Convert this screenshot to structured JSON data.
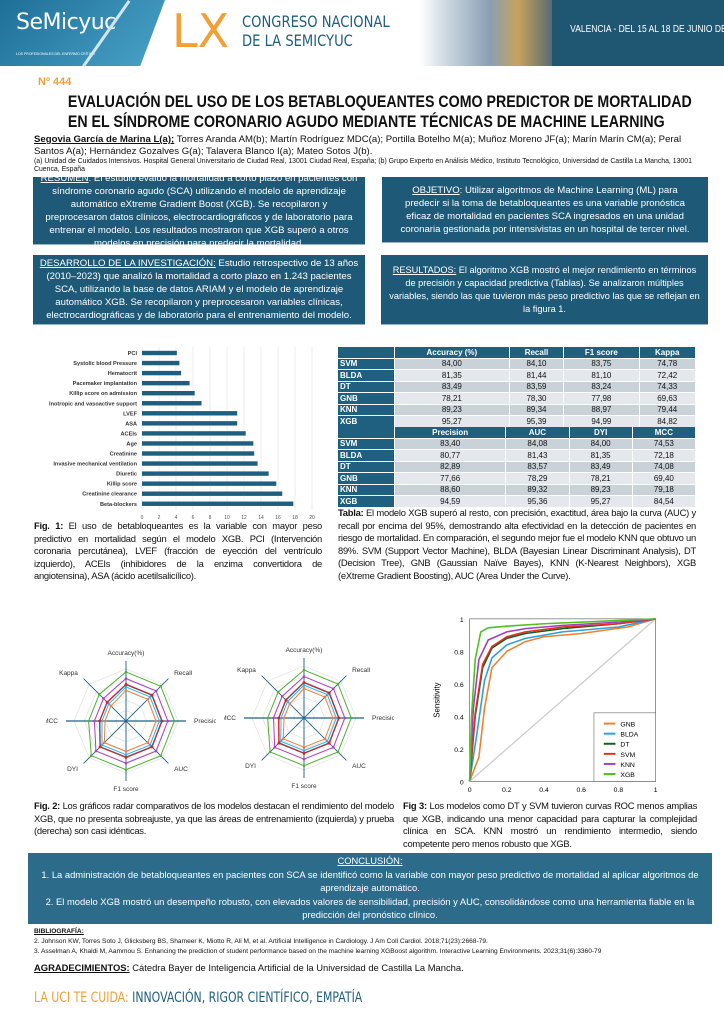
{
  "header": {
    "logo": "SeMicyuc",
    "logo_tagline": "LOS PROFESIONALES DEL ENFERMO CRÍTICO",
    "congress_number": "LX",
    "congress_line1": "CONGRESO NACIONAL",
    "congress_line2": "DE LA SEMICYUC",
    "date": "VALENCIA - DEL 15 AL 18 DE JUNIO DE 2025"
  },
  "poster_number": "Nº 444",
  "title_line1": "EVALUACIÓN DEL USO DE LOS BETABLOQUEANTES COMO PREDICTOR DE MORTALIDAD",
  "title_line2": "EN EL SÍNDROME CORONARIO AGUDO MEDIANTE TÉCNICAS DE MACHINE LEARNING",
  "first_author": "Segovia García de Marina L(a);",
  "other_authors": " Torres Aranda AM(b); Martín Rodríguez MDC(a); Portilla Botelho M(a); Muñoz Moreno JF(a); Marín Marín CM(a); Peral Santos A(a); Hernández Gozalves G(a); Talavera Blanco I(a); Mateo Sotos J(b).",
  "affiliations": "(a) Unidad de Cuidados Intensivos. Hospital General Universitario de Ciudad Real, 13001 Ciudad Real, España; (b) Grupo Experto en Análisis Médico, Instituto Tecnológico, Universidad de Castilla La Mancha, 13001 Cuenca, España",
  "resumen": {
    "label": "RESUMEN",
    "text": ": El estudio evaluó la mortalidad a corto plazo en pacientes con síndrome coronario agudo (SCA) utilizando el modelo de aprendizaje automático  eXtreme Gradient Boost (XGB). Se recopilaron y preprocesaron datos clínicos, electrocardiográficos y de laboratorio para entrenar el modelo. Los resultados mostraron que XGB superó a otros modelos en precisión para predecir la mortalidad."
  },
  "objetivo": {
    "label": "OBJETIVO",
    "text": ": Utilizar algoritmos de Machine Learning (ML) para predecir si la toma de betabloqueantes es una variable pronóstica eficaz de mortalidad en pacientes SCA ingresados en una unidad coronaria gestionada por intensivistas en un hospital de tercer nivel."
  },
  "desarrollo": {
    "label": "DESARROLLO DE LA INVESTIGACIÓN:",
    "text": " Estudio retrospectivo de 13 años (2010–2023) que analizó la mortalidad a corto plazo en 1.243 pacientes SCA, utilizando la base de datos ARIAM y el modelo de aprendizaje automático XGB. Se recopilaron y preprocesaron variables clínicas, electrocardiográficas y de laboratorio para el entrenamiento del modelo."
  },
  "resultados": {
    "label": "RESULTADOS:",
    "text": " El algoritmo XGB mostró el mejor rendimiento en términos de precisión y capacidad predictiva (Tablas). Se analizaron múltiples variables, siendo las que tuvieron más peso predictivo las que se reflejan en la figura 1."
  },
  "chart_data": [
    {
      "type": "bar",
      "orientation": "horizontal",
      "categories": [
        "PCI",
        "Systolic blood Pressure",
        "Hematocrit",
        "Pacemaker implantation",
        "Killip score on admission",
        "Inotropic and vasoactive support",
        "LVEF",
        "ASA",
        "ACEIs",
        "Age",
        "Creatinine",
        "Invasive mechanical ventilation",
        "Diuretic",
        "Killip score",
        "Creatinine clearance",
        "Beta-blockers"
      ],
      "values": [
        4.1,
        4.4,
        4.6,
        5.6,
        6.2,
        7.0,
        11.2,
        11.2,
        12.2,
        13.1,
        13.2,
        13.6,
        14.9,
        15.8,
        16.5,
        17.8
      ],
      "xlim": [
        0,
        20
      ],
      "xticks": [
        0,
        2,
        4,
        6,
        8,
        10,
        12,
        14,
        16,
        18,
        20
      ],
      "grid": true,
      "color": "#1e5f80"
    },
    {
      "type": "radar",
      "axes": [
        "Accuracy(%)",
        "Recall",
        "Precision",
        "AUC",
        "F1 score",
        "DYI",
        "MCC",
        "Kappa"
      ],
      "series_colors": {
        "GNB": "#f08040",
        "BLDA": "#3fb0e0",
        "DT": "#1e6fa0",
        "SVM": "#e02020",
        "KNN": "#b040c0",
        "XGB": "#50b030"
      },
      "panels": [
        "train",
        "test"
      ]
    },
    {
      "type": "line",
      "ylabel": "Sensitivity",
      "xlim": [
        0,
        1
      ],
      "ylim": [
        0,
        1
      ],
      "xticks": [
        "0",
        "0.2",
        "0.4",
        "0.6",
        "0.8",
        "1"
      ],
      "yticks": [
        "0",
        "0.2",
        "0.4",
        "0.6",
        "0.8",
        "1"
      ],
      "legend": "bottom-right",
      "series": [
        {
          "name": "GNB",
          "color": "#f08030",
          "x": [
            0,
            0.05,
            0.08,
            0.12,
            0.2,
            0.3,
            0.4,
            0.6,
            0.85,
            1
          ],
          "y": [
            0,
            0.15,
            0.45,
            0.7,
            0.8,
            0.86,
            0.89,
            0.91,
            0.95,
            1
          ]
        },
        {
          "name": "BLDA",
          "color": "#30a0d8",
          "x": [
            0,
            0.04,
            0.08,
            0.12,
            0.2,
            0.3,
            0.5,
            0.8,
            1
          ],
          "y": [
            0,
            0.3,
            0.62,
            0.76,
            0.84,
            0.88,
            0.92,
            0.95,
            1
          ]
        },
        {
          "name": "DT",
          "color": "#106020",
          "x": [
            0,
            0.03,
            0.07,
            0.12,
            0.2,
            0.3,
            0.5,
            0.8,
            1
          ],
          "y": [
            0,
            0.4,
            0.7,
            0.82,
            0.88,
            0.91,
            0.94,
            0.97,
            1
          ]
        },
        {
          "name": "SVM",
          "color": "#e03020",
          "x": [
            0,
            0.03,
            0.07,
            0.12,
            0.2,
            0.3,
            0.5,
            0.8,
            1
          ],
          "y": [
            0,
            0.42,
            0.72,
            0.83,
            0.89,
            0.92,
            0.95,
            0.97,
            1
          ]
        },
        {
          "name": "KNN",
          "color": "#a040c0",
          "x": [
            0,
            0.02,
            0.05,
            0.1,
            0.2,
            0.3,
            0.5,
            0.8,
            1
          ],
          "y": [
            0,
            0.45,
            0.75,
            0.87,
            0.92,
            0.94,
            0.96,
            0.98,
            1
          ]
        },
        {
          "name": "XGB",
          "color": "#50c020",
          "x": [
            0,
            0.01,
            0.03,
            0.06,
            0.1,
            0.2,
            0.4,
            0.7,
            1
          ],
          "y": [
            0,
            0.4,
            0.75,
            0.92,
            0.945,
            0.955,
            0.97,
            0.985,
            1
          ]
        }
      ]
    }
  ],
  "table": {
    "models": [
      "SVM",
      "BLDA",
      "DT",
      "GNB",
      "KNN",
      "XGB"
    ],
    "headers1": [
      "Accuracy (%)",
      "Recall",
      "F1 score",
      "Kappa"
    ],
    "rows1": [
      [
        "84,00",
        "84,10",
        "83,75",
        "74,78"
      ],
      [
        "81,35",
        "81,44",
        "81,10",
        "72,42"
      ],
      [
        "83,49",
        "83,59",
        "83,24",
        "74,33"
      ],
      [
        "78,21",
        "78,30",
        "77,98",
        "69,63"
      ],
      [
        "89,23",
        "89,34",
        "88,97",
        "79,44"
      ],
      [
        "95,27",
        "95,39",
        "94,99",
        "84,82"
      ]
    ],
    "headers2": [
      "Precision",
      "AUC",
      "DYI",
      "MCC"
    ],
    "rows2": [
      [
        "83,40",
        "84,08",
        "84,00",
        "74,53"
      ],
      [
        "80,77",
        "81,43",
        "81,35",
        "72,18"
      ],
      [
        "82,89",
        "83,57",
        "83,49",
        "74,08"
      ],
      [
        "77,66",
        "78,29",
        "78,21",
        "69,40"
      ],
      [
        "88,60",
        "89,32",
        "89,23",
        "79,18"
      ],
      [
        "94,59",
        "95,36",
        "95,27",
        "84,54"
      ]
    ]
  },
  "fig1": {
    "label": "Fig. 1:",
    "text": " El uso de betabloqueantes es la variable con mayor peso predictivo en mortalidad según el modelo XGB. PCI (Intervención coronaria percutánea), LVEF (fracción de eyección del ventrículo izquierdo), ACEIs (inhibidores de la enzima convertidora de angiotensina), ASA (ácido acetilsalicílico)."
  },
  "tabla_caption": {
    "label": "Tabla:",
    "text": " El modelo XGB superó al resto, con precisión, exactitud, área bajo la curva (AUC) y recall por encima del 95%, demostrando alta efectividad en la detección de pacientes en riesgo de mortalidad. En comparación, el segundo mejor fue el modelo KNN que obtuvo un 89%. SVM (Support Vector Machine), BLDA (Bayesian Linear Discriminant Analysis), DT (Decision Tree), GNB (Gaussian Naïve Bayes), KNN (K-Nearest Neighbors), XGB (eXtreme Gradient Boosting), AUC (Area Under the Curve)."
  },
  "fig2": {
    "label": "Fig. 2:",
    "text": " Los gráficos radar comparativos de los modelos destacan el rendimiento del modelo XGB, que no presenta sobreajuste, ya que las áreas de entrenamiento (izquierda) y prueba (derecha) son casi idénticas."
  },
  "fig3": {
    "label": "Fig 3:",
    "text": " Los modelos como DT y SVM tuvieron curvas ROC menos amplias que XGB, indicando una menor capacidad para capturar la complejidad clínica en SCA. KNN mostró un rendimiento intermedio, siendo competente pero menos robusto que XGB."
  },
  "conclusion": {
    "label": "CONCLUSIÓN:",
    "point1": "1. La administración de betabloqueantes en pacientes con SCA se identificó como la variable con mayor peso predictivo de mortalidad al aplicar algoritmos de aprendizaje automático.",
    "point2": "2. El modelo XGB mostró un desempeño robusto, con elevados valores de sensibilidad, precisión y AUC, consolidándose como una herramienta fiable en la predicción del pronóstico clínico."
  },
  "bibliografia": {
    "label": "BIBLIOGRAFÍA:",
    "ref1": "2. Johnson KW, Torres Soto J, Glicksberg BS, Shameer K, Miotto R, Ali M, et al. Artificial Intelligence in Cardiology. J Am Coll Cardiol. 2018;71(23):2668-79.",
    "ref2": "3. Asselman A, Khaldi M, Aammou S. Enhancing the prediction of student performance based on the machine learning XGBoost algorithm. Interactive Learning Environments. 2023;31(6):3360-79"
  },
  "agradecimientos": {
    "label": "AGRADECIMIENTOS:",
    "text": " Cátedra Bayer de Inteligencia Artificial de la Universidad de Castilla La Mancha."
  },
  "slogan": {
    "part1": "LA UCI TE CUIDA: ",
    "part2": "INNOVACIÓN, RIGOR CIENTÍFICO, EMPATÍA"
  }
}
